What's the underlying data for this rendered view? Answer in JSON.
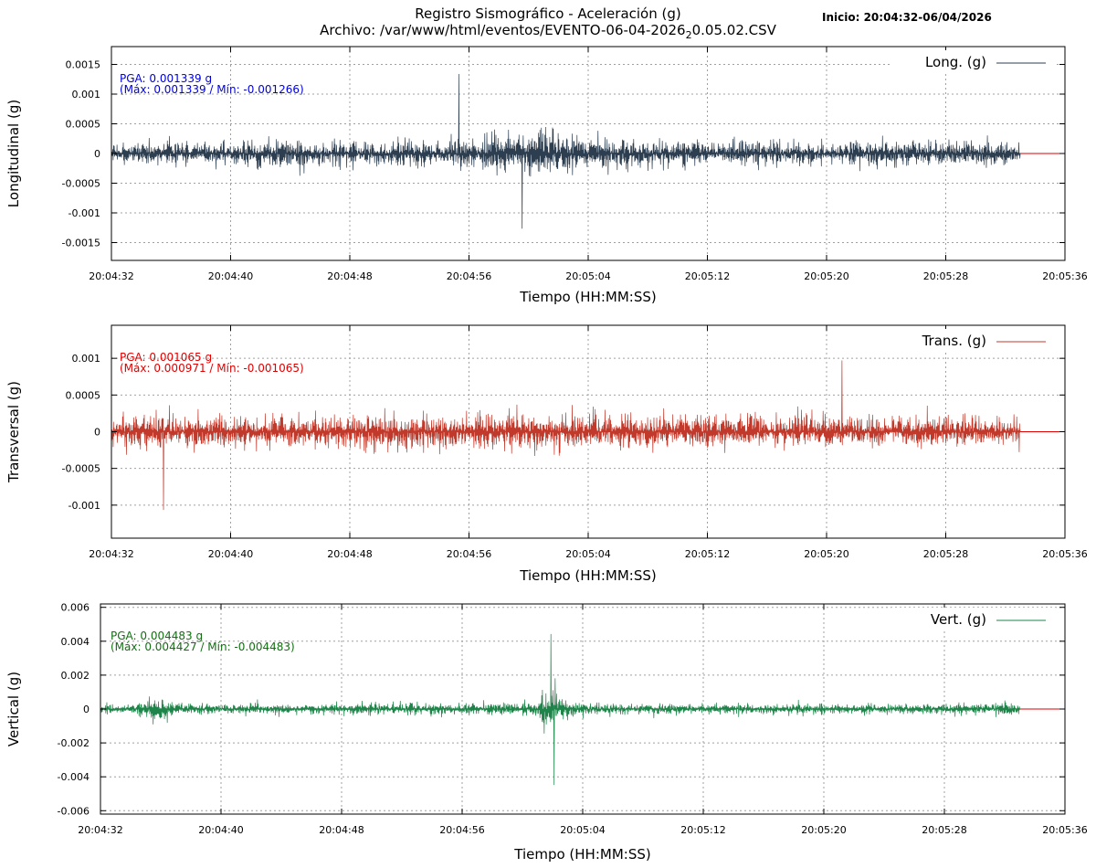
{
  "header": {
    "title": "Registro Sismográfico - Aceleración (g)",
    "file_prefix": "Archivo: /var/www/html/eventos/EVENTO-06-04-2026",
    "file_subscript": "2",
    "file_suffix": "0.05.02.CSV",
    "inicio": "Inicio: 20:04:32-06/04/2026"
  },
  "colors": {
    "longitudinal": "#2c3e50",
    "transversal": "#c0392b",
    "vertical": "#1e8449",
    "baseline": "#e00000",
    "annotation_long": "#0000e0",
    "annotation_trans": "#e00000",
    "annotation_vert": "#107010",
    "grid": "#a0a0a0"
  },
  "chart_data": [
    {
      "type": "line",
      "name": "longitudinal",
      "ylabel": "Longitudinal (g)",
      "xlabel": "Tiempo (HH:MM:SS)",
      "legend": "Long. (g)",
      "legend_position": "top-right",
      "grid": true,
      "x_ticks": [
        "20:04:32",
        "20:04:40",
        "20:04:48",
        "20:04:56",
        "20:05:04",
        "20:05:12",
        "20:05:20",
        "20:05:28",
        "20:05:36"
      ],
      "y_ticks": [
        "0.0015",
        "0.001",
        "0.0005",
        "0",
        "-0.0005",
        "-0.001",
        "-0.0015"
      ],
      "y_tick_values": [
        0.0015,
        0.001,
        0.0005,
        0,
        -0.0005,
        -0.001,
        -0.0015
      ],
      "ylim": [
        -0.0018,
        0.0018
      ],
      "xlim_seconds": [
        0,
        64
      ],
      "record_end_seconds": 61,
      "annotation": {
        "pga": "PGA: 0.001339 g",
        "maxmin": "(Máx: 0.001339 / Mín: -0.001266)"
      },
      "stats": {
        "max": 0.001339,
        "min": -0.001266
      },
      "envelope": {
        "t": [
          0,
          2,
          4,
          6,
          8,
          10,
          11,
          12,
          14,
          16,
          18,
          20,
          22,
          24,
          26,
          28,
          29,
          30,
          32,
          34,
          36,
          38,
          40,
          42,
          44,
          46,
          48,
          50,
          52,
          54,
          56,
          58,
          60,
          61
        ],
        "amp": [
          0.0005,
          0.00055,
          0.00065,
          0.0006,
          0.0006,
          0.0007,
          0.00085,
          0.0007,
          0.0006,
          0.0006,
          0.00055,
          0.0006,
          0.00065,
          0.0008,
          0.00095,
          0.0011,
          0.0012,
          0.0011,
          0.00085,
          0.0007,
          0.0007,
          0.00065,
          0.0006,
          0.00065,
          0.0006,
          0.0006,
          0.0006,
          0.0006,
          0.00065,
          0.0006,
          0.0006,
          0.0006,
          0.00055,
          0.0005
        ]
      }
    },
    {
      "type": "line",
      "name": "transversal",
      "ylabel": "Transversal (g)",
      "xlabel": "Tiempo (HH:MM:SS)",
      "legend": "Trans. (g)",
      "legend_position": "top-right",
      "grid": true,
      "x_ticks": [
        "20:04:32",
        "20:04:40",
        "20:04:48",
        "20:04:56",
        "20:05:04",
        "20:05:12",
        "20:05:20",
        "20:05:28",
        "20:05:36"
      ],
      "y_ticks": [
        "0.001",
        "0.0005",
        "0",
        "-0.0005",
        "-0.001"
      ],
      "y_tick_values": [
        0.001,
        0.0005,
        0,
        -0.0005,
        -0.001
      ],
      "ylim": [
        -0.00145,
        0.00145
      ],
      "xlim_seconds": [
        0,
        64
      ],
      "record_end_seconds": 61,
      "annotation": {
        "pga": "PGA: 0.001065 g",
        "maxmin": "(Máx: 0.000971 / Mín: -0.001065)"
      },
      "stats": {
        "max": 0.000971,
        "min": -0.001065
      },
      "envelope": {
        "t": [
          0,
          4,
          8,
          12,
          16,
          18,
          20,
          24,
          26,
          28,
          30,
          34,
          36,
          38,
          40,
          44,
          48,
          52,
          56,
          60,
          61
        ],
        "amp": [
          0.0006,
          0.00065,
          0.0007,
          0.0006,
          0.00065,
          0.00075,
          0.0007,
          0.0007,
          0.00075,
          0.0007,
          0.00065,
          0.0007,
          0.00065,
          0.0007,
          0.00065,
          0.00065,
          0.00065,
          0.0006,
          0.00065,
          0.0006,
          0.00055
        ]
      }
    },
    {
      "type": "line",
      "name": "vertical",
      "ylabel": "Vertical (g)",
      "xlabel": "Tiempo (HH:MM:SS)",
      "legend": "Vert. (g)",
      "legend_position": "top-right",
      "grid": true,
      "x_ticks": [
        "20:04:32",
        "20:04:40",
        "20:04:48",
        "20:04:56",
        "20:05:04",
        "20:05:12",
        "20:05:20",
        "20:05:28",
        "20:05:36"
      ],
      "y_ticks": [
        "0.006",
        "0.004",
        "0.002",
        "0",
        "-0.002",
        "-0.004",
        "-0.006"
      ],
      "y_tick_values": [
        0.006,
        0.004,
        0.002,
        0,
        -0.002,
        -0.004,
        -0.006
      ],
      "ylim": [
        -0.0062,
        0.0062
      ],
      "xlim_seconds": [
        0,
        64
      ],
      "record_end_seconds": 61,
      "annotation": {
        "pga": "PGA: 0.004483 g",
        "maxmin": "(Máx: 0.004427 / Mín: -0.004483)"
      },
      "stats": {
        "max": 0.004427,
        "min": -0.004483
      },
      "envelope": {
        "t": [
          0,
          2,
          3,
          3.5,
          4,
          4.5,
          5,
          6,
          8,
          10,
          12,
          16,
          20,
          22,
          24,
          28,
          29,
          29.5,
          30,
          30.5,
          31,
          32,
          36,
          40,
          44,
          48,
          52,
          56,
          60,
          61
        ],
        "amp": [
          0.0009,
          0.001,
          0.0016,
          0.0025,
          0.0022,
          0.0015,
          0.0011,
          0.001,
          0.0009,
          0.0009,
          0.0009,
          0.001,
          0.0011,
          0.0011,
          0.001,
          0.0011,
          0.0014,
          0.0042,
          0.0044,
          0.0026,
          0.0014,
          0.0011,
          0.001,
          0.0009,
          0.001,
          0.0009,
          0.0009,
          0.0009,
          0.001,
          0.001
        ]
      }
    }
  ]
}
